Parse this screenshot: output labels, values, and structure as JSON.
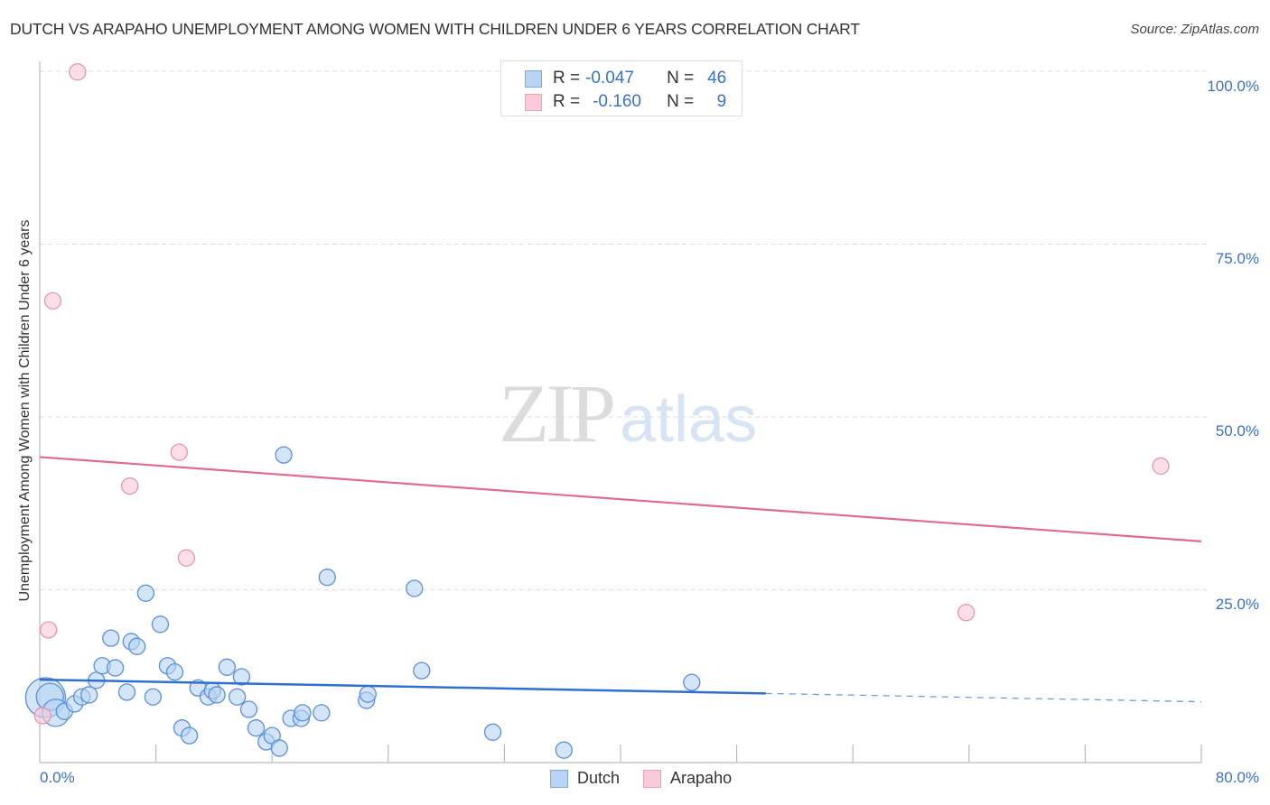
{
  "header": {
    "title": "DUTCH VS ARAPAHO UNEMPLOYMENT AMONG WOMEN WITH CHILDREN UNDER 6 YEARS CORRELATION CHART",
    "source": "Source: ZipAtlas.com"
  },
  "watermark": {
    "zip": "ZIP",
    "atlas": "atlas"
  },
  "axes": {
    "ylabel": "Unemployment Among Women with Children Under 6 years",
    "yticks": [
      "100.0%",
      "75.0%",
      "50.0%",
      "25.0%"
    ],
    "xmin_label": "0.0%",
    "xmax_label": "80.0%"
  },
  "legend": {
    "dutch": {
      "r_label": "R =",
      "r_value": "-0.047",
      "n_label": "N =",
      "n_value": "46",
      "name": "Dutch"
    },
    "arapaho": {
      "r_label": "R =",
      "r_value": "-0.160",
      "n_label": "N =",
      "n_value": "9",
      "name": "Arapaho"
    }
  },
  "colors": {
    "dutch_fill": "#b9d3f3",
    "dutch_stroke": "#5b8fd9",
    "dutch_line": "#2f6fce",
    "arapaho_fill": "#f9cad7",
    "arapaho_stroke": "#e88fab",
    "arapaho_line": "#e06a93",
    "tick_text": "#3a6fcf",
    "grid": "#dddddd"
  },
  "chart_data": {
    "type": "scatter",
    "title": "DUTCH VS ARAPAHO UNEMPLOYMENT AMONG WOMEN WITH CHILDREN UNDER 6 YEARS CORRELATION CHART",
    "xlabel": "",
    "ylabel": "Unemployment Among Women with Children Under 6 years",
    "xlim": [
      0,
      80
    ],
    "ylim": [
      0,
      100
    ],
    "x_unit": "%",
    "y_unit": "%",
    "yticks": [
      25,
      50,
      75,
      100
    ],
    "grid": true,
    "legend_position": "top-center and bottom-center",
    "series": [
      {
        "name": "Dutch",
        "r": -0.047,
        "n": 46,
        "points": [
          {
            "x": 0.4,
            "y": 9.4,
            "size": "xl"
          },
          {
            "x": 0.7,
            "y": 9.5,
            "size": "l"
          },
          {
            "x": 1.1,
            "y": 7.2,
            "size": "l"
          },
          {
            "x": 1.7,
            "y": 7.4
          },
          {
            "x": 2.4,
            "y": 8.5
          },
          {
            "x": 2.9,
            "y": 9.5
          },
          {
            "x": 3.4,
            "y": 9.8
          },
          {
            "x": 3.9,
            "y": 11.9
          },
          {
            "x": 4.3,
            "y": 14.0
          },
          {
            "x": 4.9,
            "y": 18.0
          },
          {
            "x": 5.2,
            "y": 13.7
          },
          {
            "x": 6.0,
            "y": 10.2
          },
          {
            "x": 6.3,
            "y": 17.5
          },
          {
            "x": 6.7,
            "y": 16.8
          },
          {
            "x": 7.3,
            "y": 24.5
          },
          {
            "x": 7.8,
            "y": 9.5
          },
          {
            "x": 8.3,
            "y": 20.0
          },
          {
            "x": 8.8,
            "y": 14.0
          },
          {
            "x": 9.3,
            "y": 13.1
          },
          {
            "x": 9.8,
            "y": 5.0
          },
          {
            "x": 10.3,
            "y": 3.9
          },
          {
            "x": 10.9,
            "y": 10.8
          },
          {
            "x": 11.6,
            "y": 9.5
          },
          {
            "x": 11.9,
            "y": 10.4
          },
          {
            "x": 12.2,
            "y": 9.8
          },
          {
            "x": 12.9,
            "y": 13.8
          },
          {
            "x": 13.6,
            "y": 9.5
          },
          {
            "x": 13.9,
            "y": 12.4
          },
          {
            "x": 14.4,
            "y": 7.7
          },
          {
            "x": 14.9,
            "y": 5.0
          },
          {
            "x": 15.6,
            "y": 3.0
          },
          {
            "x": 16.0,
            "y": 3.9
          },
          {
            "x": 16.5,
            "y": 2.1
          },
          {
            "x": 16.8,
            "y": 44.5
          },
          {
            "x": 17.3,
            "y": 6.4
          },
          {
            "x": 18.0,
            "y": 6.4
          },
          {
            "x": 18.1,
            "y": 7.2
          },
          {
            "x": 19.4,
            "y": 7.2
          },
          {
            "x": 19.8,
            "y": 26.8
          },
          {
            "x": 22.5,
            "y": 9.0
          },
          {
            "x": 22.6,
            "y": 9.9
          },
          {
            "x": 25.8,
            "y": 25.2
          },
          {
            "x": 26.3,
            "y": 13.3
          },
          {
            "x": 31.2,
            "y": 4.4
          },
          {
            "x": 36.1,
            "y": 1.8
          },
          {
            "x": 44.9,
            "y": 11.6
          }
        ],
        "trendline": {
          "x0": 0,
          "y0": 12.0,
          "x1": 50,
          "y1": 10.0,
          "dashed_to": {
            "x": 80,
            "y": 8.8
          }
        }
      },
      {
        "name": "Arapaho",
        "r": -0.16,
        "n": 9,
        "points": [
          {
            "x": 0.2,
            "y": 6.8
          },
          {
            "x": 0.6,
            "y": 19.2
          },
          {
            "x": 0.9,
            "y": 66.8
          },
          {
            "x": 2.6,
            "y": 99.9
          },
          {
            "x": 6.2,
            "y": 40.0
          },
          {
            "x": 9.6,
            "y": 44.9
          },
          {
            "x": 10.1,
            "y": 29.6
          },
          {
            "x": 63.8,
            "y": 21.7
          },
          {
            "x": 77.2,
            "y": 42.9
          }
        ],
        "trendline": {
          "x0": 0,
          "y0": 44.2,
          "x1": 80,
          "y1": 32.0
        }
      }
    ]
  }
}
